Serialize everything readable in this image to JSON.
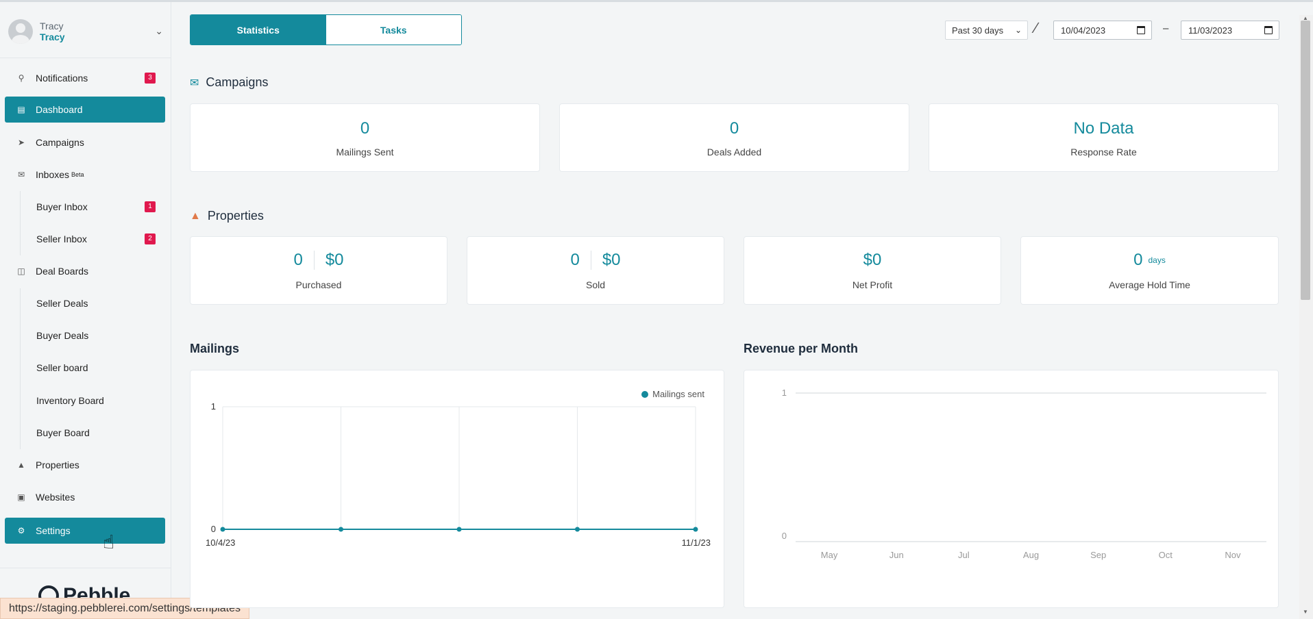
{
  "user": {
    "first_name": "Tracy",
    "second_name": "Tracy"
  },
  "sidebar": {
    "items": [
      {
        "label": "Notifications",
        "badge": "3"
      },
      {
        "label": "Dashboard"
      },
      {
        "label": "Campaigns"
      },
      {
        "label": "Inboxes",
        "sup": "Beta"
      },
      {
        "label": "Buyer Inbox",
        "badge": "1"
      },
      {
        "label": "Seller Inbox",
        "badge": "2"
      },
      {
        "label": "Deal Boards"
      },
      {
        "label": "Seller Deals"
      },
      {
        "label": "Buyer Deals"
      },
      {
        "label": "Seller board"
      },
      {
        "label": "Inventory Board"
      },
      {
        "label": "Buyer Board"
      },
      {
        "label": "Properties"
      },
      {
        "label": "Websites"
      },
      {
        "label": "Settings"
      }
    ],
    "logo": "Pebble"
  },
  "status_url": "https://staging.pebblerei.com/settings/templates",
  "tabs": [
    {
      "label": "Statistics"
    },
    {
      "label": "Tasks"
    }
  ],
  "filters": {
    "range": "Past 30 days",
    "start_date": "10/04/2023",
    "end_date": "11/03/2023",
    "separator": "–"
  },
  "campaigns": {
    "title": "Campaigns",
    "cards": [
      {
        "value": "0",
        "label": "Mailings Sent"
      },
      {
        "value": "0",
        "label": "Deals Added"
      },
      {
        "value": "No Data",
        "label": "Response Rate"
      }
    ]
  },
  "properties": {
    "title": "Properties",
    "purchased": {
      "count": "0",
      "amount": "$0",
      "label": "Purchased"
    },
    "sold": {
      "count": "0",
      "amount": "$0",
      "label": "Sold"
    },
    "net_profit": {
      "amount": "$0",
      "label": "Net Profit"
    },
    "hold_time": {
      "value": "0",
      "unit": "days",
      "label": "Average Hold Time"
    }
  },
  "colors": {
    "accent": "#148a9c",
    "badge": "#e0194e",
    "properties_icon": "#e07a4a"
  },
  "chart_data": [
    {
      "type": "line",
      "title": "Mailings",
      "legend": "top-right",
      "series": [
        {
          "name": "Mailings sent",
          "values": [
            0,
            0,
            0,
            0,
            0
          ]
        }
      ],
      "x_tick_labels": [
        "10/4/23",
        "11/1/23"
      ],
      "y_ticks": [
        "1",
        "0"
      ],
      "ylim": [
        0,
        1
      ],
      "grid": true
    },
    {
      "type": "line",
      "title": "Revenue per Month",
      "categories": [
        "May",
        "Jun",
        "Jul",
        "Aug",
        "Sep",
        "Oct",
        "Nov"
      ],
      "y_ticks": [
        "1",
        "0"
      ],
      "ylim": [
        0,
        1
      ],
      "grid": true
    }
  ]
}
